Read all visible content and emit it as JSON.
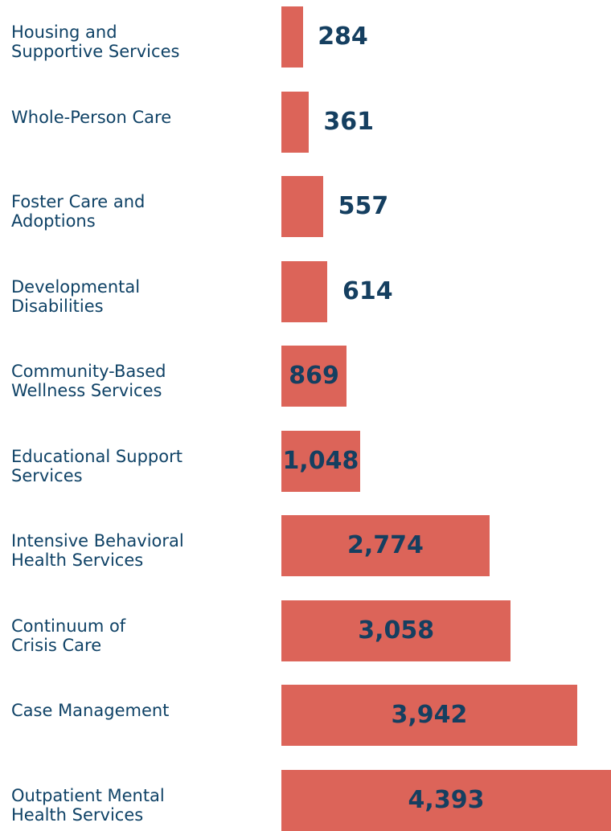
{
  "chart_data": {
    "type": "bar",
    "orientation": "horizontal",
    "color": "#dc6459",
    "categories": [
      "Housing and\nSupportive Services",
      "Whole-Person Care",
      "Foster Care and\nAdoptions",
      "Developmental\nDisabilities",
      "Community-Based\nWellness Services",
      "Educational Support\nServices",
      "Intensive Behavioral\nHealth Services",
      "Continuum of\nCrisis Care",
      "Case Management",
      "Outpatient Mental\nHealth Services"
    ],
    "values": [
      284,
      361,
      557,
      614,
      869,
      1048,
      2774,
      3058,
      3942,
      4393
    ],
    "value_labels": [
      "284",
      "361",
      "557",
      "614",
      "869",
      "1,048",
      "2,774",
      "3,058",
      "3,942",
      "4,393"
    ]
  }
}
